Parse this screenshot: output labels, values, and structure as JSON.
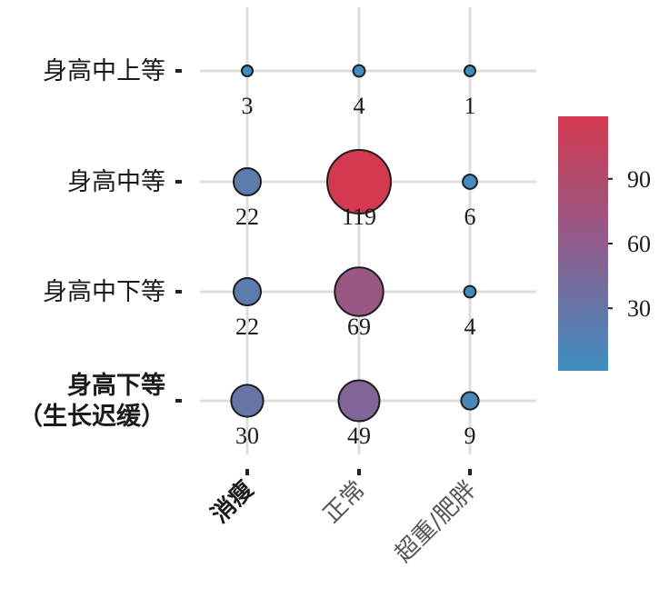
{
  "chart_data": {
    "type": "bubble",
    "x_categories": [
      "消瘦",
      "正常",
      "超重/肥胖"
    ],
    "y_categories": [
      "身高中上等",
      "身高中等",
      "身高中下等",
      "身高下等\n（生长迟缓）"
    ],
    "values": [
      [
        3,
        4,
        1
      ],
      [
        22,
        119,
        6
      ],
      [
        22,
        69,
        4
      ],
      [
        30,
        49,
        9
      ]
    ],
    "colorbar": {
      "ticks": [
        30,
        60,
        90
      ],
      "range": [
        1,
        119
      ],
      "low_color": "#3e8ec0",
      "mid_color": "#8f5c8c",
      "high_color": "#d4394f"
    },
    "grid": true
  }
}
